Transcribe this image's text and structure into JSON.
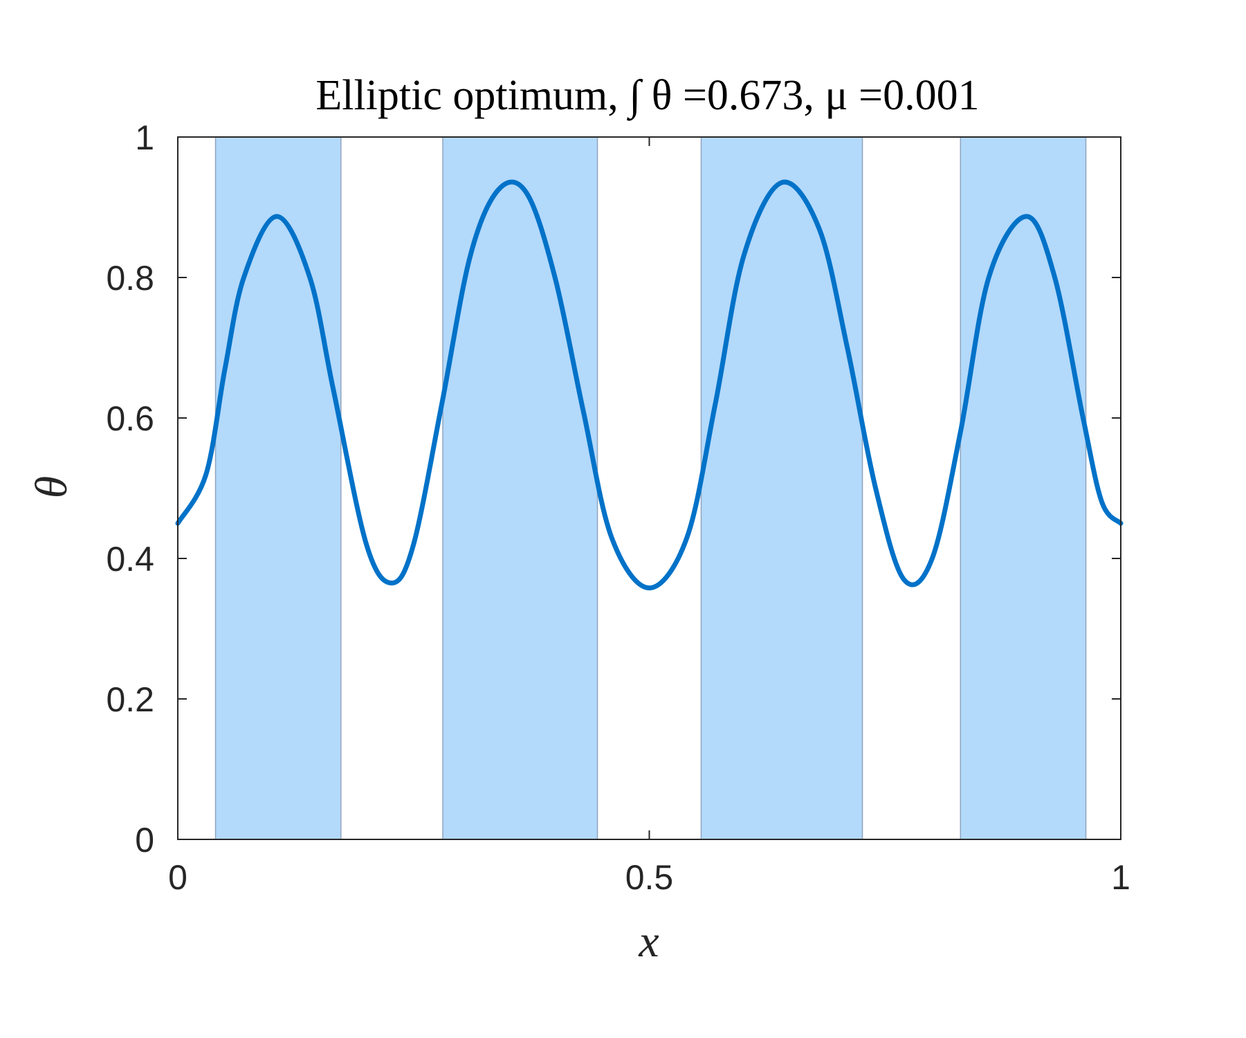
{
  "chart_data": {
    "type": "line",
    "title": "Elliptic optimum, ∫ θ =0.673, μ =0.001",
    "xlabel": "x",
    "ylabel": "θ",
    "xlim": [
      0,
      1
    ],
    "ylim": [
      0,
      1
    ],
    "xticks": [
      0,
      0.5,
      1
    ],
    "xtick_labels": [
      "0",
      "0.5",
      "1"
    ],
    "yticks": [
      0,
      0.2,
      0.4,
      0.6,
      0.8,
      1
    ],
    "ytick_labels": [
      "0",
      "0.2",
      "0.4",
      "0.6",
      "0.8",
      "1"
    ],
    "grid": false,
    "shaded_regions": [
      [
        0.04,
        0.173
      ],
      [
        0.281,
        0.445
      ],
      [
        0.555,
        0.726
      ],
      [
        0.83,
        0.963
      ]
    ],
    "series": [
      {
        "x": [
          0,
          0.03,
          0.05,
          0.07,
          0.105,
          0.14,
          0.165,
          0.2,
          0.227,
          0.25,
          0.28,
          0.31,
          0.34,
          0.37,
          0.4,
          0.43,
          0.46,
          0.5,
          0.54,
          0.57,
          0.6,
          0.64,
          0.68,
          0.71,
          0.74,
          0.77,
          0.8,
          0.83,
          0.86,
          0.9,
          0.93,
          0.96,
          0.98,
          1.0
        ],
        "values": [
          0.45,
          0.52,
          0.67,
          0.8,
          0.887,
          0.8,
          0.64,
          0.42,
          0.365,
          0.42,
          0.62,
          0.83,
          0.925,
          0.92,
          0.8,
          0.61,
          0.43,
          0.358,
          0.43,
          0.62,
          0.83,
          0.935,
          0.87,
          0.7,
          0.5,
          0.37,
          0.4,
          0.58,
          0.8,
          0.887,
          0.8,
          0.6,
          0.48,
          0.45
        ]
      }
    ],
    "colors": {
      "line": "#0072c8",
      "shade": "#b3d9fb",
      "shade_edge": "#8fa4bd",
      "axis": "#262626"
    }
  }
}
